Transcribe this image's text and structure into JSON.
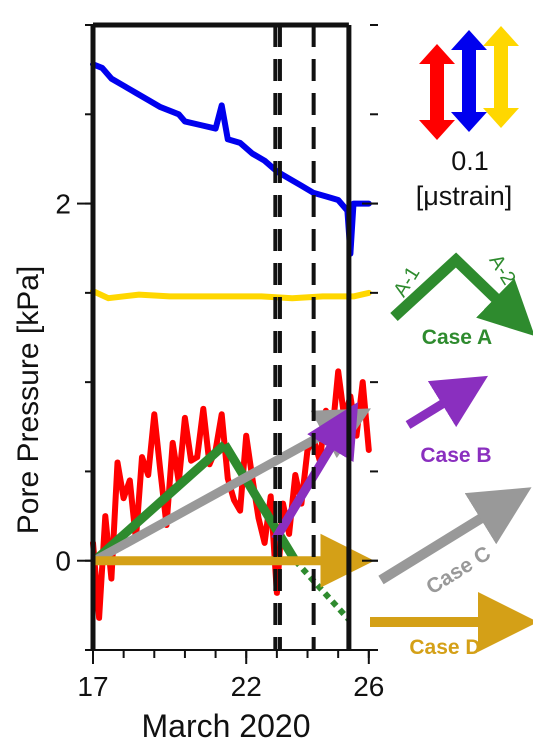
{
  "chart_data": {
    "type": "line",
    "xlabel": "March 2020",
    "ylabel": "Pore Pressure [kPa]",
    "xlim": [
      17,
      26.3
    ],
    "ylim": [
      -0.5,
      3.0
    ],
    "x_ticks": [
      17,
      22,
      26
    ],
    "y_ticks": [
      0,
      2
    ],
    "grid": false,
    "dashed_vlines": [
      22.95,
      23.1,
      24.2
    ],
    "frame_right_x": 25.35,
    "series": [
      {
        "color": "#0000ee",
        "points": [
          [
            17.0,
            2.78
          ],
          [
            17.3,
            2.76
          ],
          [
            17.6,
            2.7
          ],
          [
            18.0,
            2.66
          ],
          [
            18.4,
            2.62
          ],
          [
            18.8,
            2.58
          ],
          [
            19.2,
            2.54
          ],
          [
            19.5,
            2.52
          ],
          [
            19.8,
            2.5
          ],
          [
            20.0,
            2.46
          ],
          [
            20.5,
            2.44
          ],
          [
            21.0,
            2.42
          ],
          [
            21.2,
            2.55
          ],
          [
            21.4,
            2.36
          ],
          [
            21.8,
            2.34
          ],
          [
            22.2,
            2.28
          ],
          [
            22.6,
            2.24
          ],
          [
            23.0,
            2.18
          ],
          [
            23.4,
            2.14
          ],
          [
            23.8,
            2.1
          ],
          [
            24.2,
            2.06
          ],
          [
            24.6,
            2.04
          ],
          [
            25.0,
            2.02
          ],
          [
            25.3,
            1.96
          ],
          [
            25.4,
            1.72
          ],
          [
            25.5,
            2.0
          ],
          [
            26.0,
            2.0
          ]
        ]
      },
      {
        "color": "#ffd700",
        "points": [
          [
            17.0,
            1.51
          ],
          [
            17.5,
            1.47
          ],
          [
            18.5,
            1.49
          ],
          [
            19.5,
            1.48
          ],
          [
            20.5,
            1.48
          ],
          [
            21.5,
            1.48
          ],
          [
            22.5,
            1.48
          ],
          [
            23.5,
            1.47
          ],
          [
            24.5,
            1.48
          ],
          [
            25.5,
            1.48
          ],
          [
            26.0,
            1.5
          ]
        ]
      },
      {
        "color": "#ff0000",
        "points": [
          [
            17.0,
            0.1
          ],
          [
            17.2,
            -0.32
          ],
          [
            17.4,
            0.25
          ],
          [
            17.6,
            -0.1
          ],
          [
            17.8,
            0.55
          ],
          [
            18.0,
            0.35
          ],
          [
            18.2,
            0.45
          ],
          [
            18.4,
            0.12
          ],
          [
            18.6,
            0.58
          ],
          [
            18.8,
            0.48
          ],
          [
            19.0,
            0.82
          ],
          [
            19.2,
            0.5
          ],
          [
            19.4,
            0.2
          ],
          [
            19.6,
            0.66
          ],
          [
            19.8,
            0.44
          ],
          [
            20.0,
            0.8
          ],
          [
            20.2,
            0.56
          ],
          [
            20.4,
            0.58
          ],
          [
            20.6,
            0.85
          ],
          [
            20.8,
            0.54
          ],
          [
            21.0,
            0.62
          ],
          [
            21.2,
            0.82
          ],
          [
            21.4,
            0.46
          ],
          [
            21.6,
            0.34
          ],
          [
            21.8,
            0.28
          ],
          [
            22.0,
            0.7
          ],
          [
            22.2,
            0.46
          ],
          [
            22.4,
            0.24
          ],
          [
            22.6,
            0.1
          ],
          [
            22.8,
            0.36
          ],
          [
            23.0,
            -0.18
          ],
          [
            23.2,
            0.32
          ],
          [
            23.4,
            0.15
          ],
          [
            23.6,
            0.48
          ],
          [
            23.8,
            0.32
          ],
          [
            24.0,
            0.62
          ],
          [
            24.2,
            0.68
          ],
          [
            24.4,
            0.56
          ],
          [
            24.6,
            0.84
          ],
          [
            24.8,
            0.7
          ],
          [
            25.0,
            1.06
          ],
          [
            25.2,
            0.8
          ],
          [
            25.4,
            0.92
          ],
          [
            25.6,
            0.7
          ],
          [
            25.8,
            1.0
          ],
          [
            26.0,
            0.62
          ]
        ]
      }
    ],
    "arrows_in_plot": [
      {
        "color": "#2e8b2e",
        "from": [
          17.05,
          0.0
        ],
        "to": [
          21.3,
          0.65
        ],
        "head": false
      },
      {
        "color": "#2e8b2e",
        "from": [
          21.3,
          0.65
        ],
        "to": [
          23.6,
          0.0
        ],
        "head": false
      },
      {
        "color": "#2e8b2e",
        "from": [
          23.6,
          0.0
        ],
        "to": [
          25.35,
          -0.33
        ],
        "head": false,
        "dotted": true
      },
      {
        "color": "#999999",
        "from": [
          17.05,
          0.0
        ],
        "to": [
          25.3,
          0.78
        ],
        "head": true
      },
      {
        "color": "#8a2fbf",
        "from": [
          22.95,
          0.12
        ],
        "to": [
          25.2,
          0.76
        ],
        "head": true
      },
      {
        "color": "#d4a017",
        "from": [
          17.05,
          0.0
        ],
        "to": [
          25.3,
          0.0
        ],
        "head": true
      }
    ],
    "scale_bar_label": "0.1",
    "scale_bar_unit": "[μstrain]",
    "legend": {
      "case_a": {
        "label": "Case A",
        "left": "A-1",
        "right": "A-2",
        "color": "#2e8b2e"
      },
      "case_b": {
        "label": "Case B",
        "color": "#8a2fbf"
      },
      "case_c": {
        "label": "Case C",
        "color": "#999999"
      },
      "case_d": {
        "label": "Case D",
        "color": "#d4a017"
      }
    }
  }
}
